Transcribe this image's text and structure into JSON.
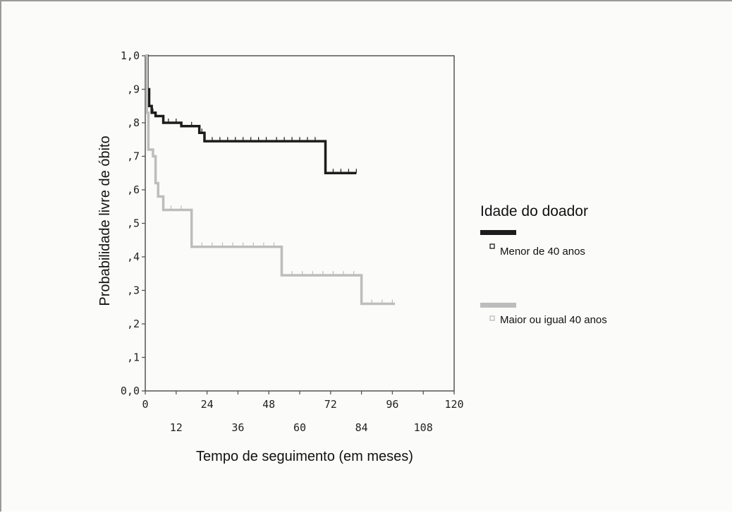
{
  "chart_data": {
    "type": "line",
    "subtype": "kaplan-meier-step",
    "title": "",
    "xlabel": "Tempo de seguimento (em meses)",
    "ylabel": "Probabilidade livre de óbito",
    "xlim": [
      0,
      120
    ],
    "ylim": [
      0,
      1
    ],
    "x_ticks_top_row": [
      "0",
      "24",
      "48",
      "72",
      "96",
      "120"
    ],
    "x_ticks_bottom_row": [
      "12",
      "36",
      "60",
      "84",
      "108"
    ],
    "y_ticks": [
      "0,0",
      ",1",
      ",2",
      ",3",
      ",4",
      ",5",
      ",6",
      ",7",
      ",8",
      ",9",
      "1,0"
    ],
    "grid": false,
    "legend": {
      "title": "Idade do doador",
      "placement": "right"
    },
    "series": [
      {
        "name": "Menor de 40 anos",
        "color": "#1c1c1c",
        "steps": [
          [
            0,
            1.0
          ],
          [
            0.8,
            0.9
          ],
          [
            1.5,
            0.85
          ],
          [
            2.5,
            0.83
          ],
          [
            4,
            0.82
          ],
          [
            7,
            0.8
          ],
          [
            14,
            0.79
          ],
          [
            21,
            0.77
          ],
          [
            23,
            0.745
          ],
          [
            70,
            0.65
          ],
          [
            82,
            0.65
          ]
        ],
        "censor_x": [
          3,
          9,
          12,
          18,
          22,
          26,
          29,
          32,
          35,
          38,
          41,
          44,
          47,
          51,
          54,
          57,
          60,
          63,
          66,
          73,
          76,
          79,
          82
        ]
      },
      {
        "name": "Maior ou igual 40 anos",
        "color": "#bdbdbd",
        "steps": [
          [
            0,
            1.0
          ],
          [
            0.6,
            0.83
          ],
          [
            1.2,
            0.72
          ],
          [
            3,
            0.7
          ],
          [
            4,
            0.62
          ],
          [
            5,
            0.58
          ],
          [
            7,
            0.54
          ],
          [
            18,
            0.43
          ],
          [
            53,
            0.345
          ],
          [
            84,
            0.26
          ],
          [
            97,
            0.26
          ]
        ],
        "censor_x": [
          10,
          14,
          22,
          26,
          30,
          34,
          38,
          42,
          46,
          50,
          57,
          61,
          65,
          69,
          73,
          77,
          81,
          88,
          92,
          96
        ]
      }
    ]
  }
}
